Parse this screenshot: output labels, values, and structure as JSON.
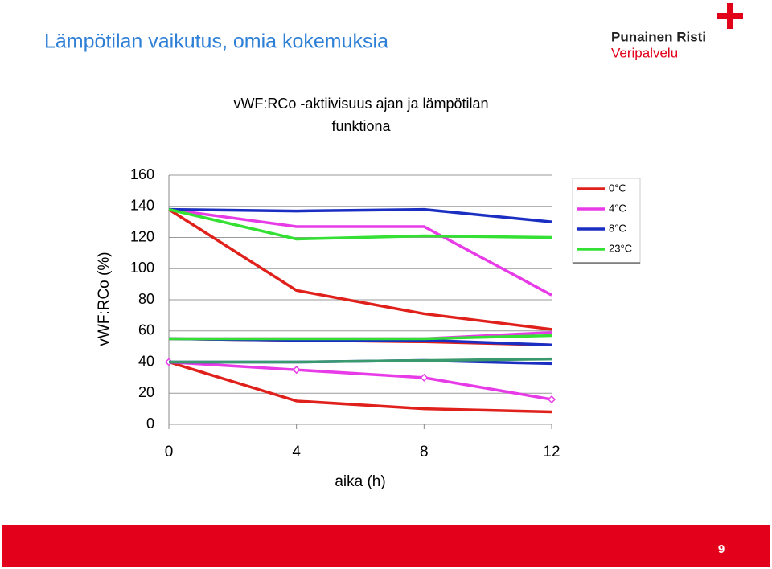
{
  "header": {
    "title": "Lämpötilan vaikutus, omia kokemuksia",
    "logo_line1": "Punainen Risti",
    "logo_line2": "Veripalvelu"
  },
  "chart_data": {
    "type": "line",
    "title": "vWF:RCo -aktiivisuus ajan ja lämpötilan",
    "subtitle": "funktiona",
    "y_label": "vWF:RCo (%)",
    "x_label": "aika (h)",
    "x": [
      0,
      4,
      8,
      12
    ],
    "xlim": [
      0,
      12
    ],
    "xticks": [
      0,
      4,
      8,
      12
    ],
    "ylim": [
      0,
      160
    ],
    "yticks": [
      0,
      20,
      40,
      60,
      80,
      100,
      120,
      140,
      160
    ],
    "grid": true,
    "series": [
      {
        "name": "0°C",
        "color": "#e0201b",
        "values": [
          138,
          86,
          71,
          61
        ]
      },
      {
        "name": "4°C",
        "color": "#e83be8",
        "values": [
          138,
          127,
          127,
          83
        ]
      },
      {
        "name": "8°C",
        "color": "#1b2ec2",
        "values": [
          138,
          137,
          138,
          130
        ]
      },
      {
        "name": "23°C",
        "color": "#33e033",
        "values": [
          138,
          119,
          121,
          120
        ]
      },
      {
        "color": "#e0201b",
        "values": [
          55,
          54,
          53,
          51
        ]
      },
      {
        "color": "#e83be8",
        "values": [
          55,
          55,
          55,
          59
        ]
      },
      {
        "color": "#1b2ec2",
        "values": [
          55,
          54,
          54,
          51
        ]
      },
      {
        "color": "#33e033",
        "values": [
          55,
          55,
          55,
          57
        ]
      },
      {
        "color": "#e0201b",
        "values": [
          40,
          15,
          10,
          8
        ]
      },
      {
        "color": "#e83be8",
        "values": [
          40,
          35,
          30,
          16
        ],
        "marker": "diamond"
      },
      {
        "color": "#1b2ec2",
        "values": [
          40,
          40,
          41,
          39
        ]
      },
      {
        "color": "#3a9a6e",
        "values": [
          40,
          40,
          41,
          42
        ]
      }
    ]
  },
  "footer": {
    "page": "9"
  }
}
